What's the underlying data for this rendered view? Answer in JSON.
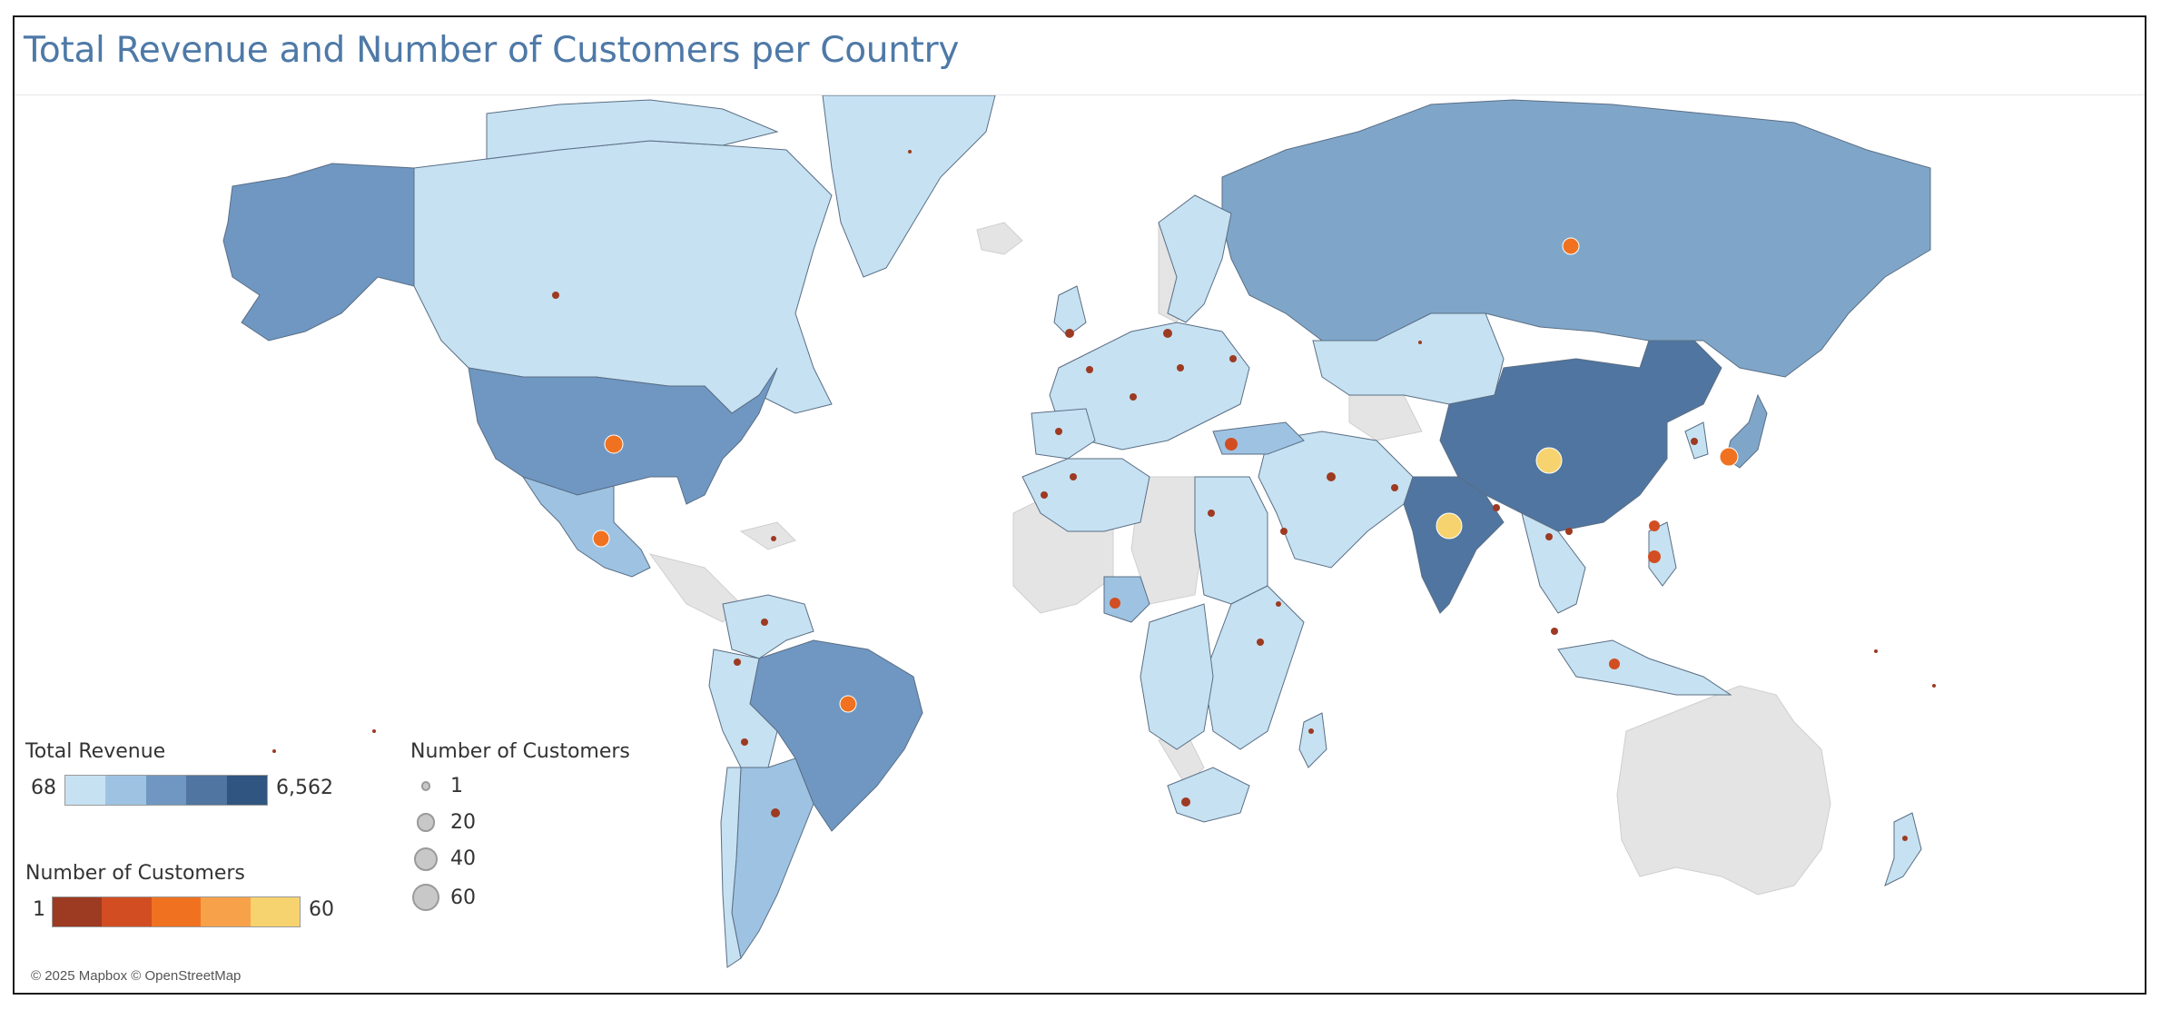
{
  "title": "Total Revenue and Number of Customers per Country",
  "legend_revenue": {
    "title": "Total Revenue",
    "min_label": "68",
    "max_label": "6,562",
    "colors": [
      "#c6e1f1",
      "#9ec3e2",
      "#6f97c2",
      "#4f75a0",
      "#2f5580"
    ]
  },
  "legend_customers_color": {
    "title": "Number of Customers",
    "min_label": "1",
    "max_label": "60",
    "colors": [
      "#9d3a22",
      "#d24e22",
      "#f07220",
      "#f7a24a",
      "#f6d36f"
    ]
  },
  "legend_customers_size": {
    "title": "Number of Customers",
    "items": [
      {
        "label": "1",
        "value": 1
      },
      {
        "label": "20",
        "value": 20
      },
      {
        "label": "40",
        "value": 40
      },
      {
        "label": "60",
        "value": 60
      }
    ]
  },
  "attribution": "© 2025 Mapbox © OpenStreetMap",
  "map_colors": {
    "ocean": "#ffffff",
    "land_no_data": "#e3e3e3",
    "border": "#5a6e85"
  }
}
